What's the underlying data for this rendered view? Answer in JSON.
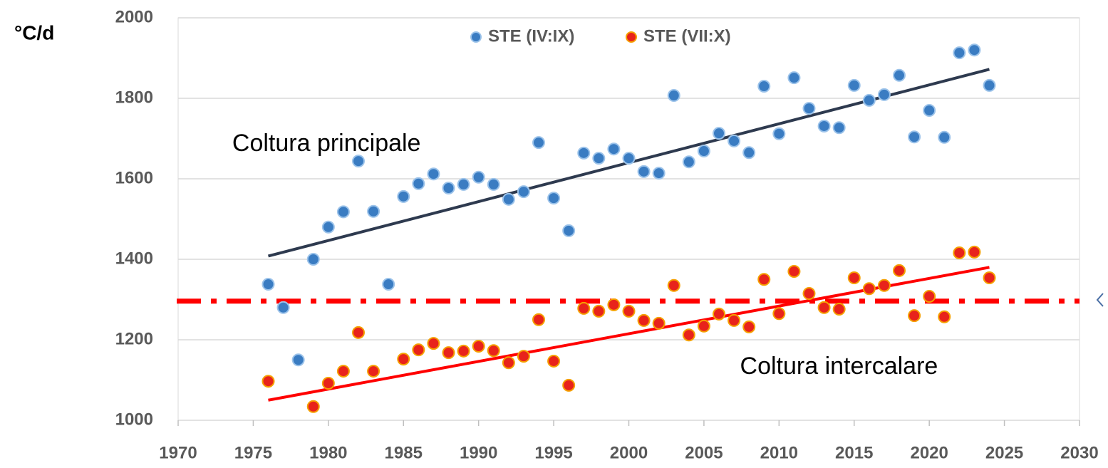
{
  "chart_data": {
    "type": "scatter",
    "y_label": "°C/d",
    "x": [
      1976,
      1977,
      1978,
      1979,
      1980,
      1981,
      1982,
      1983,
      1984,
      1985,
      1986,
      1987,
      1988,
      1989,
      1990,
      1991,
      1992,
      1993,
      1994,
      1995,
      1996,
      1997,
      1998,
      1999,
      2000,
      2001,
      2002,
      2003,
      2004,
      2005,
      2006,
      2007,
      2008,
      2009,
      2010,
      2011,
      2012,
      2013,
      2014,
      2015,
      2016,
      2017,
      2018,
      2019,
      2020,
      2021,
      2022,
      2023,
      2024
    ],
    "series": [
      {
        "name": "STE (IV:IX)",
        "color": "#3a7cc2",
        "values": [
          1338,
          1280,
          1150,
          1400,
          1480,
          1518,
          1644,
          1519,
          1338,
          1556,
          1588,
          1612,
          1577,
          1586,
          1604,
          1586,
          1549,
          1568,
          1690,
          1552,
          1471,
          1664,
          1651,
          1674,
          1651,
          1618,
          1614,
          1807,
          1642,
          1669,
          1713,
          1694,
          1665,
          1830,
          1712,
          1851,
          1775,
          1731,
          1727,
          1832,
          1795,
          1809,
          1857,
          1704,
          1770,
          1703,
          1913,
          1920,
          1832
        ]
      },
      {
        "name": "STE (VII:X)",
        "color": "#e8231b",
        "values": [
          1097,
          null,
          null,
          1034,
          1092,
          1122,
          1218,
          1122,
          null,
          1152,
          1175,
          1191,
          1168,
          1172,
          1184,
          1173,
          1143,
          1159,
          1250,
          1147,
          1087,
          1278,
          1271,
          1287,
          1271,
          1248,
          1241,
          1335,
          1212,
          1234,
          1264,
          1248,
          1232,
          1350,
          1265,
          1370,
          1315,
          1280,
          1276,
          1354,
          1327,
          1335,
          1372,
          1260,
          1308,
          1257,
          1416,
          1418,
          1354
        ]
      }
    ],
    "trendlines": [
      {
        "x": [
          1976,
          2024
        ],
        "y": [
          1408,
          1872
        ],
        "color": "#2e3a4f"
      },
      {
        "x": [
          1976,
          2024
        ],
        "y": [
          1050,
          1380
        ],
        "color": "#ff0000"
      }
    ],
    "reference_line": {
      "y": 1296,
      "color": "#ff0000",
      "style": "dashdot"
    },
    "annotations": [
      {
        "text": "Coltura principale",
        "x": 1973.6,
        "y": 1685
      },
      {
        "text": "Coltura intercalare",
        "x": 2007.4,
        "y": 1131
      }
    ],
    "xlim": [
      1970,
      2030
    ],
    "xticks": [
      1970,
      1975,
      1980,
      1985,
      1990,
      1995,
      2000,
      2005,
      2010,
      2015,
      2020,
      2025,
      2030
    ],
    "ylim": [
      1000,
      2000
    ],
    "yticks": [
      1000,
      1200,
      1400,
      1600,
      1800,
      2000
    ],
    "grid": true,
    "legend": "top"
  }
}
